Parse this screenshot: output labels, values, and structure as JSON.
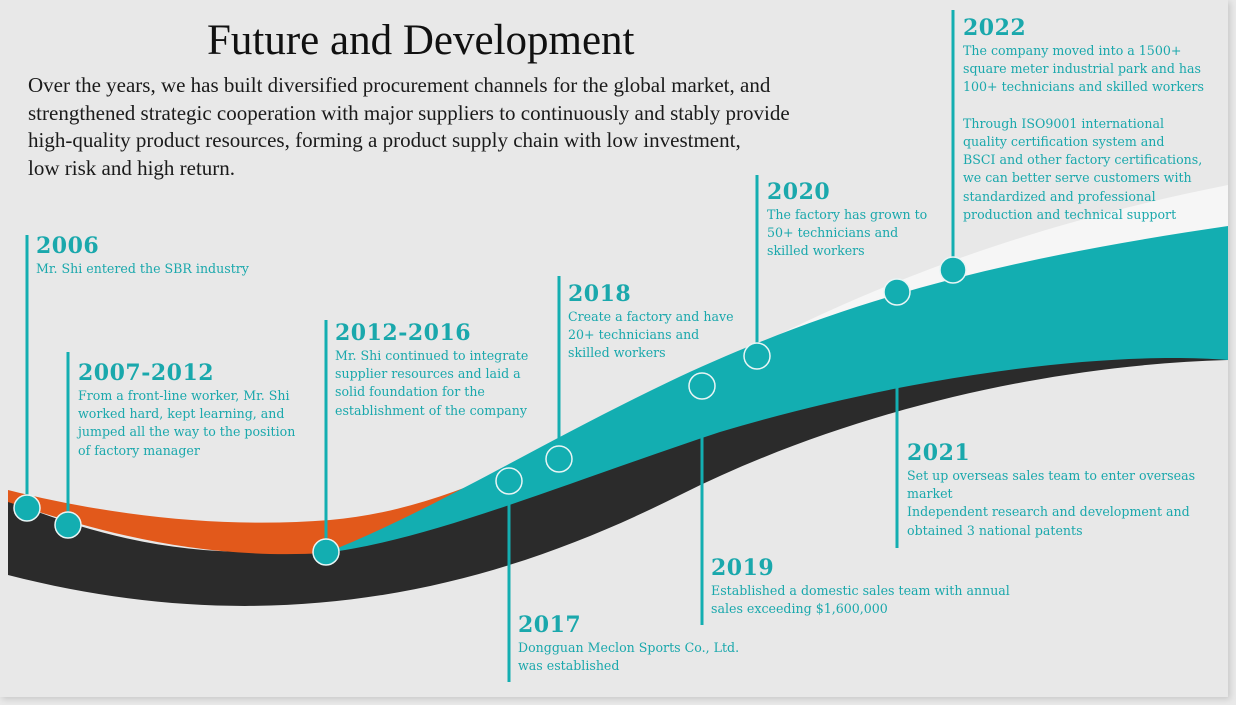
{
  "title": "Future and Development",
  "intro_lines": [
    "Over the years, we has built diversified procurement channels for the global market, and",
    "strengthened strategic cooperation with major suppliers to continuously and stably provide",
    "high-quality product resources, forming a product supply chain with low investment,",
    "low risk and high return."
  ],
  "colors": {
    "teal": "#13aeb1",
    "orange": "#e2591b",
    "dark": "#2b2b2b",
    "text": "#1aa8ac",
    "background": "#e8e8e8"
  },
  "events": [
    {
      "year": "2006",
      "text": "Mr. Shi entered the SBR industry"
    },
    {
      "year": "2007-2012",
      "text": "From a front-line worker, Mr. Shi\nworked hard, kept learning, and\njumped all the way to the position\nof factory manager"
    },
    {
      "year": "2012-2016",
      "text": "Mr. Shi continued to integrate\nsupplier resources and laid a\nsolid foundation for the\nestablishment of the company"
    },
    {
      "year": "2017",
      "text": "Dongguan Meclon Sports Co., Ltd.\nwas established"
    },
    {
      "year": "2018",
      "text": "Create a factory and have\n20+ technicians and\nskilled workers"
    },
    {
      "year": "2019",
      "text": "Established a domestic sales team with annual\nsales exceeding $1,600,000"
    },
    {
      "year": "2020",
      "text": "The factory has grown to\n50+ technicians and\nskilled workers"
    },
    {
      "year": "2021",
      "text": "Set up overseas sales team to enter overseas\nmarket\nIndependent research and development and\nobtained 3 national patents"
    },
    {
      "year": "2022",
      "text": "The company moved into a 1500+\nsquare meter industrial park and has\n100+ technicians and skilled workers\n\nThrough ISO9001 international\nquality certification system and\nBSCI and other factory certifications,\nwe can better serve customers with\nstandardized and professional\nproduction and technical support"
    }
  ]
}
